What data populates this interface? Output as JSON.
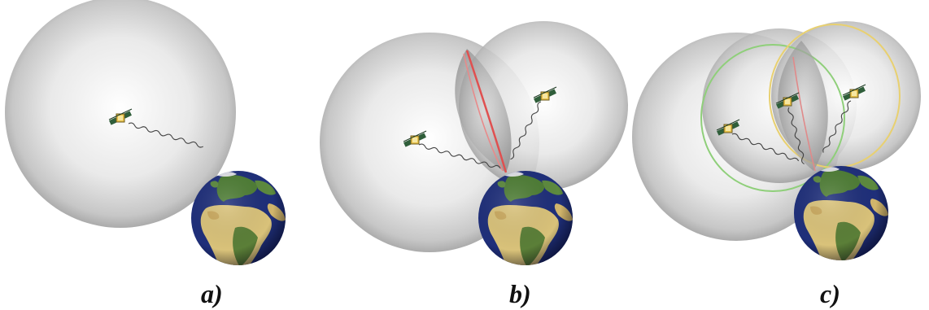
{
  "panels": [
    {
      "id": "a",
      "label": "a)"
    },
    {
      "id": "b",
      "label": "b)"
    },
    {
      "id": "c",
      "label": "c)"
    }
  ],
  "colors": {
    "sphere_center": "#ffffff",
    "sphere_edge": "#9a9a9a",
    "intersection_red": "#e05050",
    "intersection_green": "#8fcf7a",
    "intersection_yellow": "#e8d070",
    "ocean": "#1f2f7a",
    "land_green": "#4e7d35",
    "desert": "#d9c27a"
  },
  "icons": {
    "satellite": "satellite-icon",
    "earth": "earth-globe-icon",
    "signal": "signal-wave-icon"
  }
}
